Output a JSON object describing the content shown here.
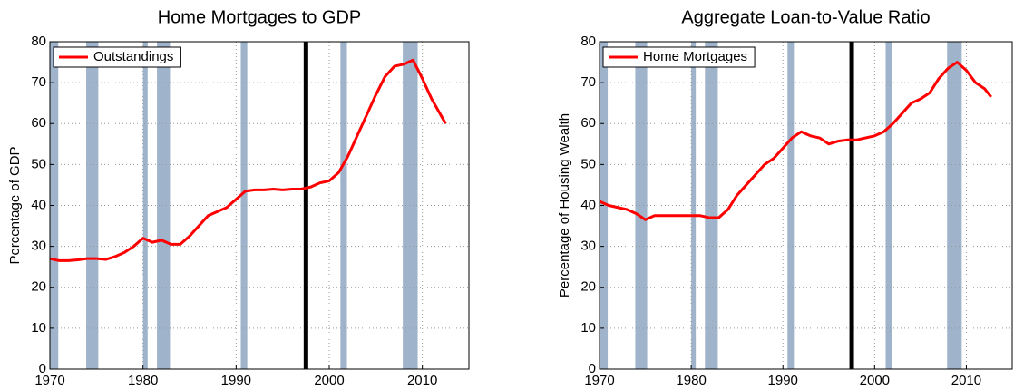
{
  "chart_data": [
    {
      "type": "line",
      "title": "Home Mortgages to GDP",
      "y_label": "Percentage of GDP",
      "x": [
        1970,
        1971,
        1972,
        1973,
        1974,
        1975,
        1976,
        1977,
        1978,
        1979,
        1980,
        1981,
        1982,
        1983,
        1984,
        1985,
        1986,
        1987,
        1988,
        1989,
        1990,
        1991,
        1992,
        1993,
        1994,
        1995,
        1996,
        1997,
        1998,
        1999,
        2000,
        2001,
        2002,
        2003,
        2004,
        2005,
        2006,
        2007,
        2008,
        2009,
        2010,
        2011,
        2012,
        2012.5
      ],
      "series": [
        {
          "name": "Outstandings",
          "color": "#ff0000",
          "values": [
            27,
            26.5,
            26.5,
            26.7,
            27,
            27,
            26.8,
            27.5,
            28.5,
            30,
            32,
            31,
            31.5,
            30.5,
            30.5,
            32.5,
            35,
            37.5,
            38.5,
            39.5,
            41.5,
            43.5,
            43.8,
            43.8,
            44,
            43.8,
            44,
            44,
            44.5,
            45.5,
            46,
            48,
            52,
            57,
            62,
            67,
            71.5,
            74,
            74.5,
            75.5,
            71,
            66,
            62,
            60
          ]
        }
      ],
      "xlim": [
        1970,
        2015
      ],
      "ylim": [
        0,
        80
      ],
      "xticks": [
        1970,
        1980,
        1990,
        2000,
        2010
      ],
      "yticks": [
        0,
        10,
        20,
        30,
        40,
        50,
        60,
        70,
        80
      ],
      "grid": true,
      "legend": "upper left",
      "shaded_ranges": [
        [
          1969.9,
          1970.9
        ],
        [
          1973.9,
          1975.2
        ],
        [
          1980.0,
          1980.5
        ],
        [
          1981.5,
          1982.9
        ],
        [
          1990.5,
          1991.2
        ],
        [
          2001.2,
          2001.9
        ],
        [
          2007.9,
          2009.5
        ]
      ],
      "shade_color": "#9fb4cb",
      "vline": 1997.5
    },
    {
      "type": "line",
      "title": "Aggregate Loan-to-Value Ratio",
      "y_label": "Percentage of Housing Wealth",
      "x": [
        1970,
        1971,
        1972,
        1973,
        1974,
        1975,
        1976,
        1977,
        1978,
        1979,
        1980,
        1981,
        1982,
        1983,
        1984,
        1985,
        1986,
        1987,
        1988,
        1989,
        1990,
        1991,
        1992,
        1993,
        1994,
        1995,
        1996,
        1997,
        1998,
        1999,
        2000,
        2001,
        2002,
        2003,
        2004,
        2005,
        2006,
        2007,
        2008,
        2009,
        2010,
        2011,
        2012,
        2012.7
      ],
      "series": [
        {
          "name": "Home Mortgages",
          "color": "#ff0000",
          "values": [
            41,
            40,
            39.5,
            39,
            38,
            36.5,
            37.5,
            37.5,
            37.5,
            37.5,
            37.5,
            37.5,
            37,
            37,
            39,
            42.5,
            45,
            47.5,
            50,
            51.5,
            54,
            56.5,
            58,
            57,
            56.5,
            55,
            55.7,
            56,
            56,
            56.5,
            57,
            58,
            60,
            62.5,
            65,
            66,
            67.5,
            71,
            73.5,
            75,
            73,
            70,
            68.5,
            66.5
          ]
        }
      ],
      "xlim": [
        1970,
        2015
      ],
      "ylim": [
        0,
        80
      ],
      "xticks": [
        1970,
        1980,
        1990,
        2000,
        2010
      ],
      "yticks": [
        0,
        10,
        20,
        30,
        40,
        50,
        60,
        70,
        80
      ],
      "grid": true,
      "legend": "upper left",
      "shaded_ranges": [
        [
          1969.9,
          1970.9
        ],
        [
          1973.9,
          1975.2
        ],
        [
          1980.0,
          1980.5
        ],
        [
          1981.5,
          1982.9
        ],
        [
          1990.5,
          1991.2
        ],
        [
          2001.2,
          2001.9
        ],
        [
          2007.9,
          2009.5
        ]
      ],
      "shade_color": "#9fb4cb",
      "vline": 1997.5
    }
  ]
}
